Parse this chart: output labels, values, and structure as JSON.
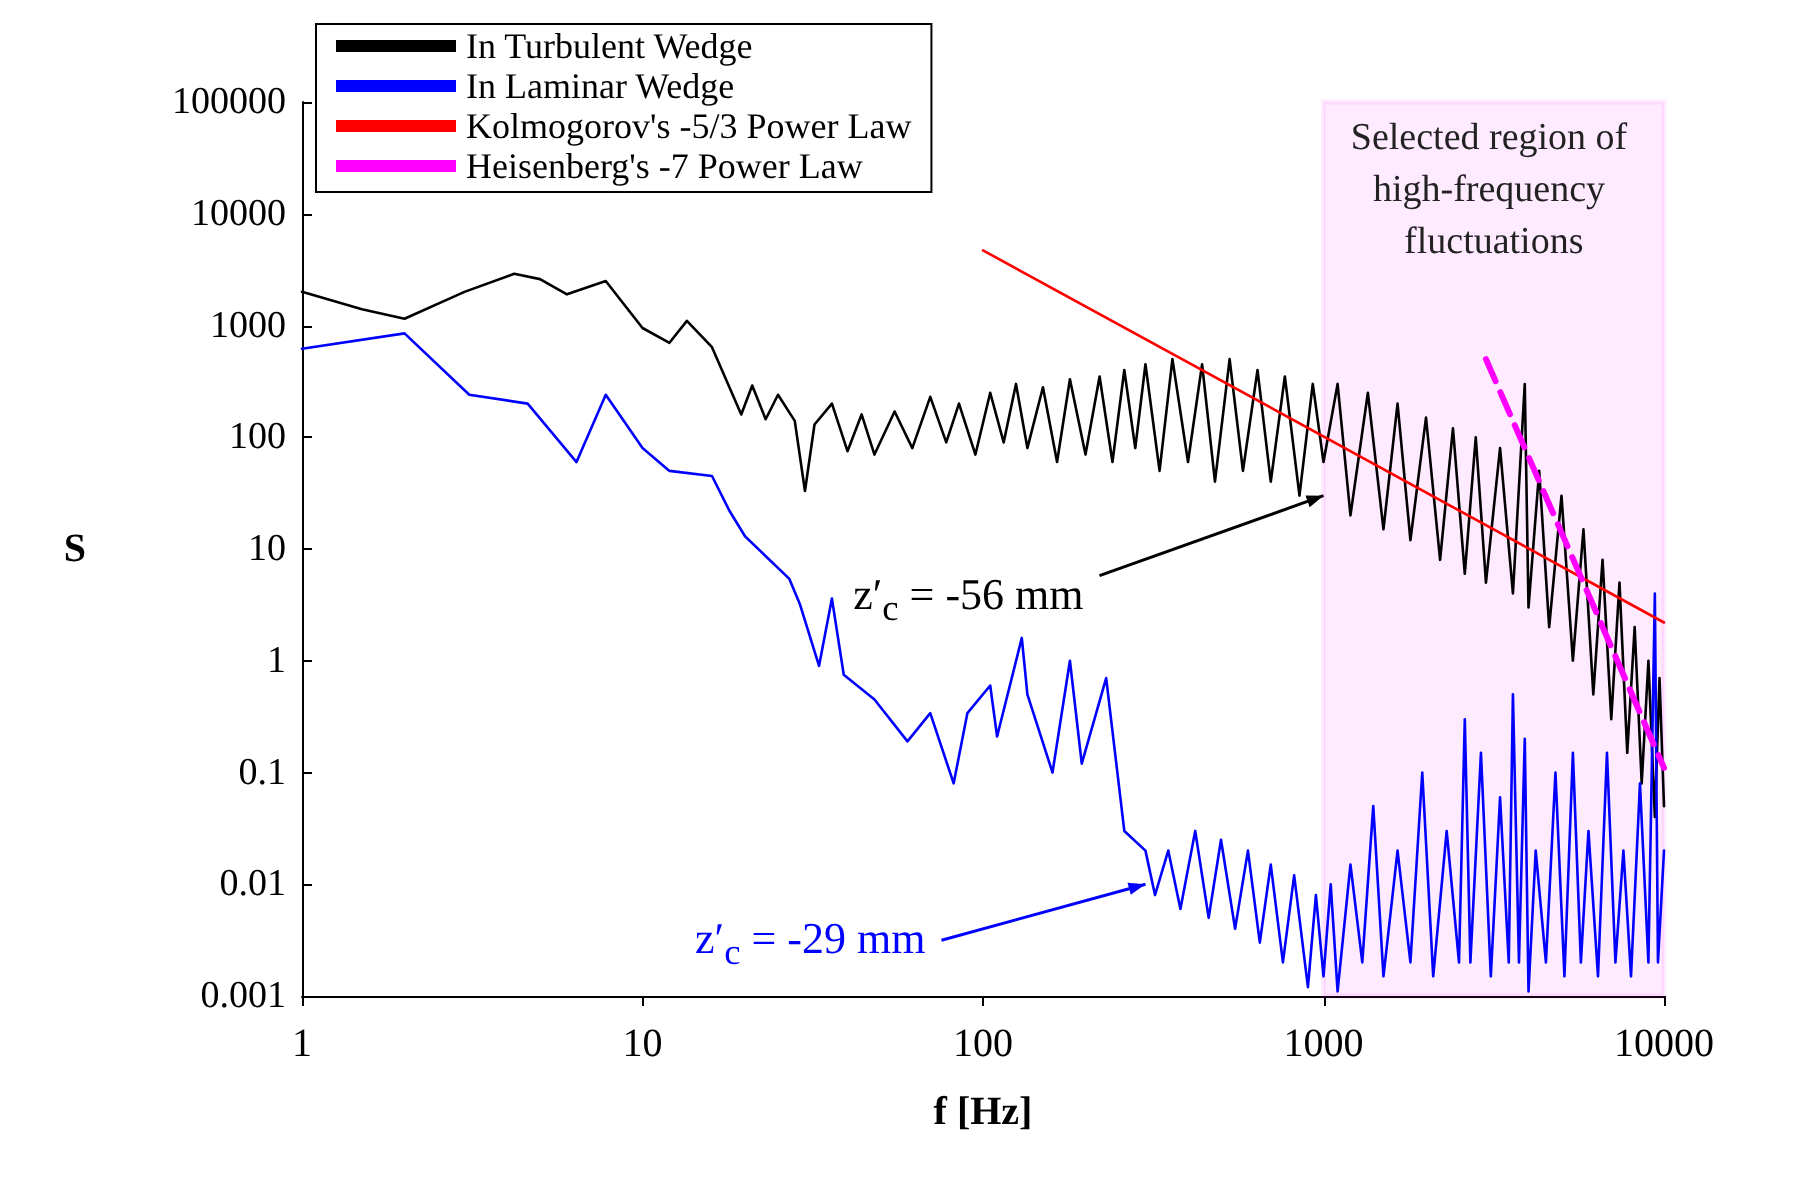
{
  "chart_data": {
    "type": "line",
    "xlabel": "f [Hz]",
    "ylabel": "S",
    "log": "xy",
    "xlim": [
      1,
      10000
    ],
    "xticks": [
      1,
      10,
      100,
      1000,
      10000
    ],
    "ylim": [
      0.001,
      100000
    ],
    "yticks": [
      0.001,
      0.01,
      0.1,
      1,
      10,
      100,
      1000,
      10000,
      100000
    ],
    "grid": false,
    "legend": "top left",
    "marker": "none",
    "series": [
      {
        "name": "In Turbulent Wedge",
        "color": "#000000",
        "x": [
          1,
          1.5,
          2,
          3,
          4.2,
          5,
          6,
          7.8,
          10,
          12,
          13.5,
          16,
          19.5,
          21,
          23,
          25,
          28,
          30,
          32,
          36,
          40,
          44,
          48,
          55,
          62,
          70,
          78,
          85,
          95,
          105,
          115,
          125,
          135,
          150,
          165,
          180,
          200,
          220,
          240,
          260,
          280,
          300,
          330,
          360,
          400,
          440,
          480,
          530,
          580,
          640,
          700,
          770,
          850,
          930,
          1000,
          1100,
          1200,
          1350,
          1500,
          1650,
          1800,
          2000,
          2200,
          2400,
          2600,
          2800,
          3000,
          3300,
          3600,
          3900,
          4000,
          4300,
          4600,
          5000,
          5400,
          5800,
          6200,
          6600,
          7000,
          7400,
          7800,
          8200,
          8600,
          9000,
          9400,
          9700,
          10000
        ],
        "values": [
          2000,
          1400,
          1150,
          2000,
          2900,
          2600,
          1900,
          2500,
          950,
          700,
          1100,
          640,
          160,
          290,
          145,
          240,
          140,
          33,
          130,
          200,
          75,
          160,
          70,
          170,
          80,
          230,
          90,
          200,
          70,
          250,
          90,
          300,
          80,
          280,
          60,
          330,
          70,
          350,
          60,
          400,
          80,
          450,
          50,
          500,
          60,
          450,
          40,
          500,
          50,
          400,
          40,
          350,
          30,
          300,
          60,
          300,
          20,
          250,
          15,
          200,
          12,
          150,
          8,
          120,
          6,
          100,
          5,
          80,
          4,
          300,
          3,
          50,
          2,
          30,
          1,
          15,
          0.5,
          8,
          0.3,
          5,
          0.15,
          2,
          0.08,
          1,
          0.04,
          0.7,
          0.05
        ]
      },
      {
        "name": "In Laminar Wedge",
        "color": "#0000ff",
        "x": [
          1,
          2,
          3.1,
          4.6,
          6.4,
          7.8,
          10,
          12,
          16,
          18,
          20,
          27,
          29,
          33,
          36,
          39,
          48,
          60,
          70,
          82,
          90,
          105,
          110,
          130,
          135,
          160,
          180,
          195,
          230,
          260,
          300,
          320,
          350,
          380,
          420,
          460,
          500,
          550,
          600,
          650,
          700,
          760,
          820,
          900,
          950,
          1000,
          1050,
          1100,
          1200,
          1300,
          1400,
          1500,
          1650,
          1800,
          1950,
          2100,
          2300,
          2500,
          2600,
          2700,
          2900,
          3100,
          3300,
          3500,
          3600,
          3750,
          3900,
          4000,
          4200,
          4500,
          4800,
          5100,
          5400,
          5700,
          6000,
          6400,
          6800,
          7200,
          7600,
          8000,
          8500,
          9000,
          9400,
          9600,
          10000
        ],
        "values": [
          620,
          850,
          240,
          200,
          60,
          240,
          80,
          50,
          45,
          22,
          13,
          5.4,
          3.2,
          0.9,
          3.6,
          0.75,
          0.45,
          0.19,
          0.34,
          0.08,
          0.34,
          0.6,
          0.21,
          1.6,
          0.5,
          0.1,
          1,
          0.12,
          0.7,
          0.03,
          0.02,
          0.008,
          0.02,
          0.006,
          0.03,
          0.005,
          0.025,
          0.004,
          0.02,
          0.003,
          0.015,
          0.002,
          0.012,
          0.0012,
          0.008,
          0.0015,
          0.01,
          0.0011,
          0.015,
          0.002,
          0.05,
          0.0015,
          0.02,
          0.002,
          0.1,
          0.0015,
          0.03,
          0.002,
          0.3,
          0.002,
          0.15,
          0.0015,
          0.06,
          0.002,
          0.5,
          0.002,
          0.2,
          0.0011,
          0.02,
          0.002,
          0.1,
          0.0015,
          0.15,
          0.002,
          0.03,
          0.0015,
          0.15,
          0.002,
          0.02,
          0.0015,
          0.08,
          0.002,
          4,
          0.002,
          0.02
        ]
      },
      {
        "name": "Kolmogorov's -5/3 Power Law",
        "color": "#ff0000",
        "x": [
          100,
          10000
        ],
        "values": [
          4700,
          2.2
        ]
      },
      {
        "name": "Heisenberg's -7 Power Law",
        "color": "#ff00ff",
        "line_style": "dashed",
        "x": [
          3000,
          10000
        ],
        "values": [
          500,
          0.11
        ]
      }
    ],
    "bands": [
      {
        "axis": "x",
        "from": 1000,
        "to": 10000,
        "label": "Selected region of high-frequency fluctuations",
        "color": "#ff00ff"
      }
    ],
    "annotations": [
      {
        "text": "z′$_{c}$ = -56 mm",
        "x": 1000,
        "y": 30
      },
      {
        "text": "z′$_{c}$ = -29 mm",
        "x": 300,
        "y": 0.01
      }
    ]
  }
}
